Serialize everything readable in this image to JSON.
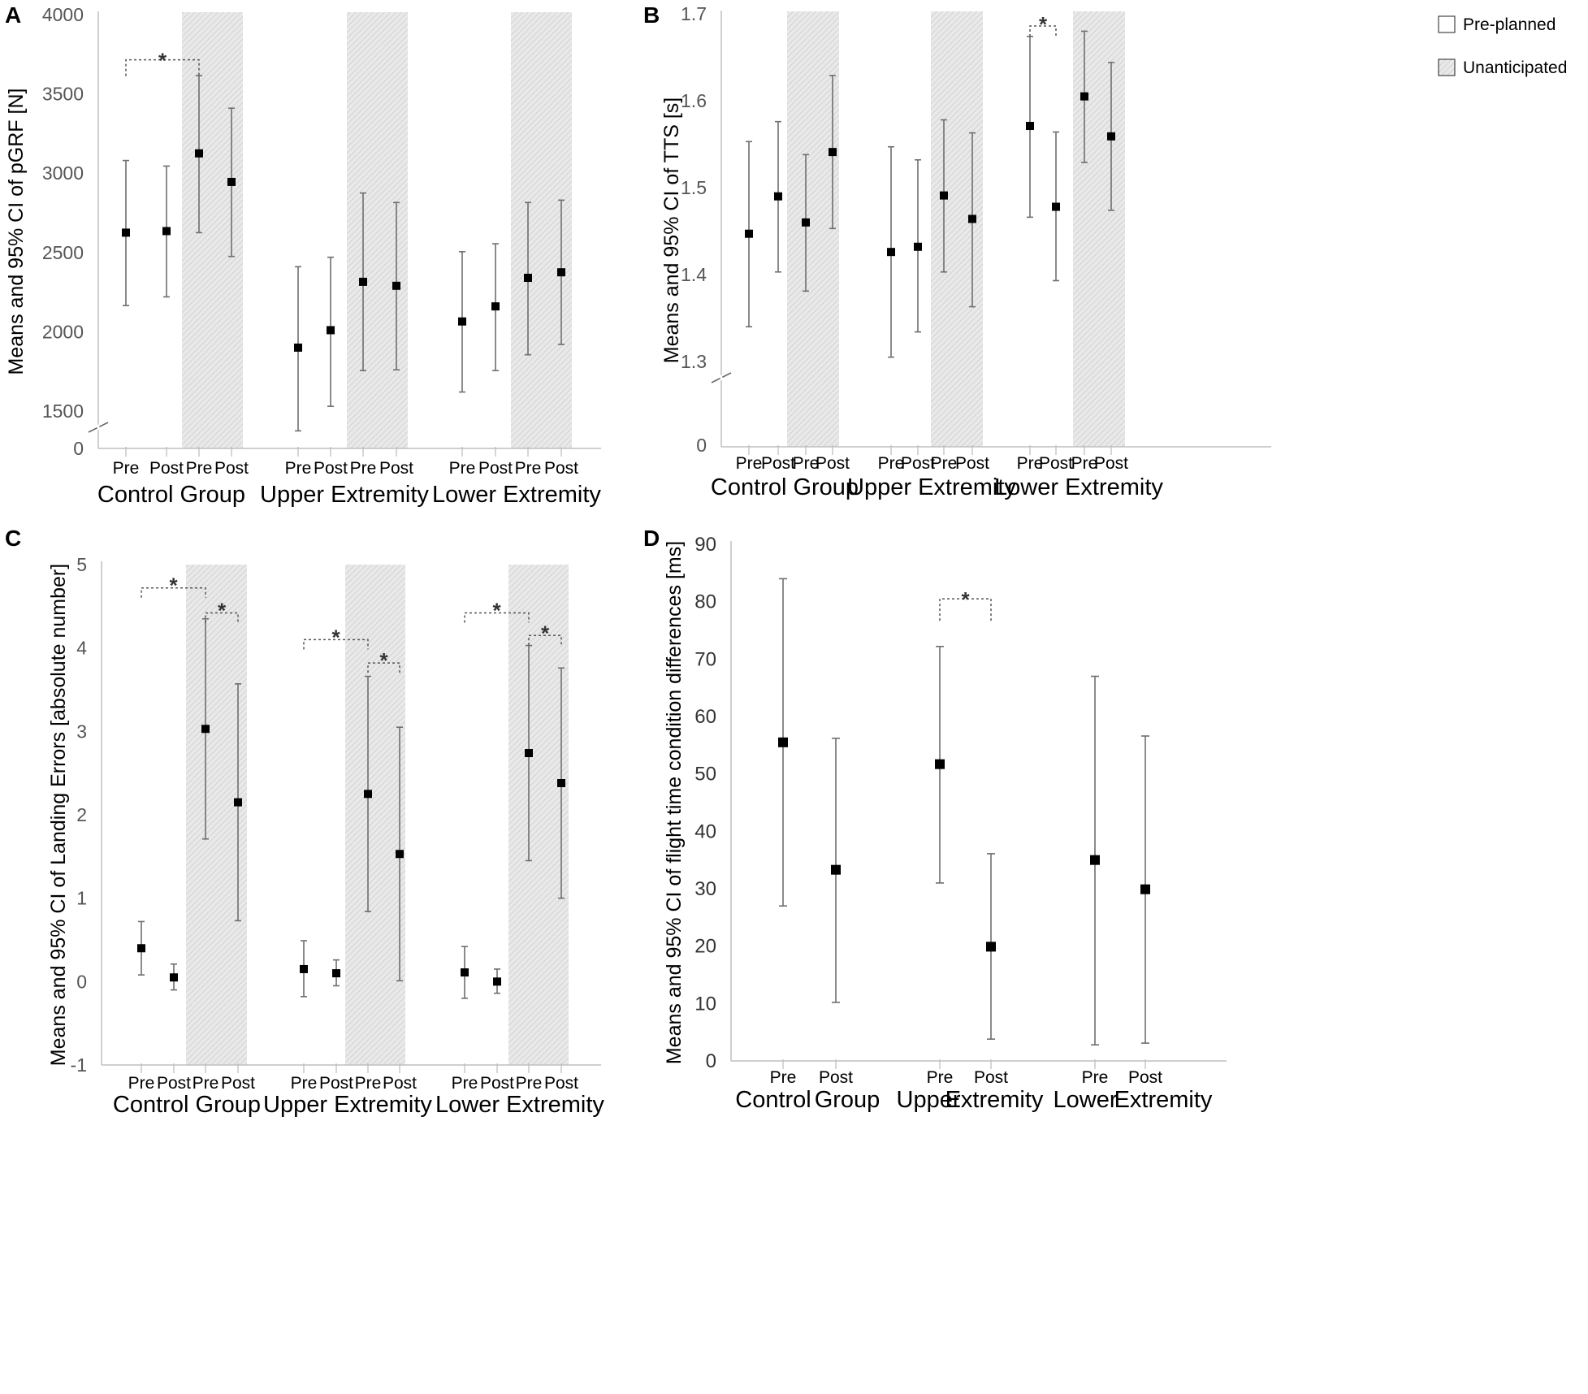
{
  "colors": {
    "axis": "#bfbfbf",
    "error_bar": "#6e6e6e",
    "marker": "#000000",
    "shade": "#d6d6d6",
    "bracket": "#555555",
    "text": "#000000"
  },
  "chart_data": [
    {
      "panel": "A",
      "type": "scatter",
      "title": "",
      "xlabel": "",
      "ylabel": "Means and 95% CI of pGRF [N]",
      "yticks": [
        "0",
        "1500",
        "2000",
        "2500",
        "3000",
        "3500",
        "4000"
      ],
      "ylim": [
        1500,
        4000
      ],
      "axis_break": true,
      "groups": [
        "Control Group",
        "Upper Extremity",
        "Lower Extremity"
      ],
      "conditions": [
        "Pre",
        "Post",
        "Pre",
        "Post"
      ],
      "points": [
        {
          "group": "Control Group",
          "condition": "Pre",
          "type": "Pre-planned",
          "mean": 2625,
          "lower": 2165,
          "upper": 3080
        },
        {
          "group": "Control Group",
          "condition": "Post",
          "type": "Pre-planned",
          "mean": 2635,
          "lower": 2220,
          "upper": 3045
        },
        {
          "group": "Control Group",
          "condition": "Pre",
          "type": "Unanticipated",
          "mean": 3125,
          "lower": 2625,
          "upper": 3615
        },
        {
          "group": "Control Group",
          "condition": "Post",
          "type": "Unanticipated",
          "mean": 2945,
          "lower": 2475,
          "upper": 3410
        },
        {
          "group": "Upper Extremity",
          "condition": "Pre",
          "type": "Pre-planned",
          "mean": 1900,
          "lower": 1375,
          "upper": 2410
        },
        {
          "group": "Upper Extremity",
          "condition": "Post",
          "type": "Pre-planned",
          "mean": 2010,
          "lower": 1530,
          "upper": 2470
        },
        {
          "group": "Upper Extremity",
          "condition": "Pre",
          "type": "Unanticipated",
          "mean": 2315,
          "lower": 1755,
          "upper": 2875
        },
        {
          "group": "Upper Extremity",
          "condition": "Post",
          "type": "Unanticipated",
          "mean": 2290,
          "lower": 1760,
          "upper": 2815
        },
        {
          "group": "Lower Extremity",
          "condition": "Pre",
          "type": "Pre-planned",
          "mean": 2065,
          "lower": 1620,
          "upper": 2505
        },
        {
          "group": "Lower Extremity",
          "condition": "Post",
          "type": "Pre-planned",
          "mean": 2160,
          "lower": 1755,
          "upper": 2555
        },
        {
          "group": "Lower Extremity",
          "condition": "Pre",
          "type": "Unanticipated",
          "mean": 2340,
          "lower": 1855,
          "upper": 2815
        },
        {
          "group": "Lower Extremity",
          "condition": "Post",
          "type": "Unanticipated",
          "mean": 2375,
          "lower": 1920,
          "upper": 2830
        }
      ],
      "significance": [
        {
          "from": 0,
          "to": 2,
          "label": "*",
          "level": 3715
        }
      ]
    },
    {
      "panel": "B",
      "type": "scatter",
      "title": "",
      "xlabel": "",
      "ylabel": "Means and 95% CI of TTS [s]",
      "yticks": [
        "0",
        "1.3",
        "1.4",
        "1.5",
        "1.6",
        "1.7"
      ],
      "ylim": [
        1.3,
        1.7
      ],
      "axis_break": true,
      "groups": [
        "Control Group",
        "Upper Extremity",
        "Lower Extremity"
      ],
      "conditions": [
        "Pre",
        "Post",
        "Pre",
        "Post"
      ],
      "points": [
        {
          "group": "Control Group",
          "condition": "Pre",
          "type": "Pre-planned",
          "mean": 1.447,
          "lower": 1.34,
          "upper": 1.553
        },
        {
          "group": "Control Group",
          "condition": "Post",
          "type": "Pre-planned",
          "mean": 1.49,
          "lower": 1.403,
          "upper": 1.576
        },
        {
          "group": "Control Group",
          "condition": "Pre",
          "type": "Unanticipated",
          "mean": 1.46,
          "lower": 1.381,
          "upper": 1.538
        },
        {
          "group": "Control Group",
          "condition": "Post",
          "type": "Unanticipated",
          "mean": 1.541,
          "lower": 1.453,
          "upper": 1.629
        },
        {
          "group": "Upper Extremity",
          "condition": "Pre",
          "type": "Pre-planned",
          "mean": 1.426,
          "lower": 1.305,
          "upper": 1.547
        },
        {
          "group": "Upper Extremity",
          "condition": "Post",
          "type": "Pre-planned",
          "mean": 1.432,
          "lower": 1.334,
          "upper": 1.532
        },
        {
          "group": "Upper Extremity",
          "condition": "Pre",
          "type": "Unanticipated",
          "mean": 1.491,
          "lower": 1.403,
          "upper": 1.578
        },
        {
          "group": "Upper Extremity",
          "condition": "Post",
          "type": "Unanticipated",
          "mean": 1.464,
          "lower": 1.363,
          "upper": 1.563
        },
        {
          "group": "Lower Extremity",
          "condition": "Pre",
          "type": "Pre-planned",
          "mean": 1.571,
          "lower": 1.466,
          "upper": 1.674
        },
        {
          "group": "Lower Extremity",
          "condition": "Post",
          "type": "Pre-planned",
          "mean": 1.478,
          "lower": 1.393,
          "upper": 1.564
        },
        {
          "group": "Lower Extremity",
          "condition": "Pre",
          "type": "Unanticipated",
          "mean": 1.605,
          "lower": 1.529,
          "upper": 1.68
        },
        {
          "group": "Lower Extremity",
          "condition": "Post",
          "type": "Unanticipated",
          "mean": 1.559,
          "lower": 1.474,
          "upper": 1.644
        }
      ],
      "significance": [
        {
          "from": 8,
          "to": 9,
          "label": "*",
          "level": 1.686
        }
      ],
      "legend": {
        "placement": "top-right",
        "entries": [
          "Pre-planned",
          "Unanticipated"
        ]
      }
    },
    {
      "panel": "C",
      "type": "scatter",
      "title": "",
      "xlabel": "",
      "ylabel": "Means and 95% CI of Landing Errors [absolute number]",
      "yticks": [
        "-1",
        "0",
        "1",
        "2",
        "3",
        "4",
        "5"
      ],
      "ylim": [
        -1,
        5
      ],
      "axis_break": false,
      "groups": [
        "Control Group",
        "Upper Extremity",
        "Lower Extremity"
      ],
      "conditions": [
        "Pre",
        "Post",
        "Pre",
        "Post"
      ],
      "points": [
        {
          "group": "Control Group",
          "condition": "Pre",
          "type": "Pre-planned",
          "mean": 0.4,
          "lower": 0.08,
          "upper": 0.72
        },
        {
          "group": "Control Group",
          "condition": "Post",
          "type": "Pre-planned",
          "mean": 0.05,
          "lower": -0.1,
          "upper": 0.21
        },
        {
          "group": "Control Group",
          "condition": "Pre",
          "type": "Unanticipated",
          "mean": 3.03,
          "lower": 1.71,
          "upper": 4.35
        },
        {
          "group": "Control Group",
          "condition": "Post",
          "type": "Unanticipated",
          "mean": 2.15,
          "lower": 0.73,
          "upper": 3.57
        },
        {
          "group": "Upper Extremity",
          "condition": "Pre",
          "type": "Pre-planned",
          "mean": 0.15,
          "lower": -0.18,
          "upper": 0.49
        },
        {
          "group": "Upper Extremity",
          "condition": "Post",
          "type": "Pre-planned",
          "mean": 0.1,
          "lower": -0.05,
          "upper": 0.26
        },
        {
          "group": "Upper Extremity",
          "condition": "Pre",
          "type": "Unanticipated",
          "mean": 2.25,
          "lower": 0.84,
          "upper": 3.66
        },
        {
          "group": "Upper Extremity",
          "condition": "Post",
          "type": "Unanticipated",
          "mean": 1.53,
          "lower": 0.01,
          "upper": 3.05
        },
        {
          "group": "Lower Extremity",
          "condition": "Pre",
          "type": "Pre-planned",
          "mean": 0.11,
          "lower": -0.2,
          "upper": 0.42
        },
        {
          "group": "Lower Extremity",
          "condition": "Post",
          "type": "Pre-planned",
          "mean": 0.0,
          "lower": -0.14,
          "upper": 0.15
        },
        {
          "group": "Lower Extremity",
          "condition": "Pre",
          "type": "Unanticipated",
          "mean": 2.74,
          "lower": 1.45,
          "upper": 4.03
        },
        {
          "group": "Lower Extremity",
          "condition": "Post",
          "type": "Unanticipated",
          "mean": 2.38,
          "lower": 1.0,
          "upper": 3.76
        }
      ],
      "significance": [
        {
          "from": 0,
          "to": 2,
          "label": "*",
          "level": 4.72
        },
        {
          "from": 2,
          "to": 3,
          "label": "*",
          "level": 4.42
        },
        {
          "from": 4,
          "to": 6,
          "label": "*",
          "level": 4.1
        },
        {
          "from": 6,
          "to": 7,
          "label": "*",
          "level": 3.82
        },
        {
          "from": 8,
          "to": 10,
          "label": "*",
          "level": 4.42
        },
        {
          "from": 10,
          "to": 11,
          "label": "*",
          "level": 4.15
        }
      ]
    },
    {
      "panel": "D",
      "type": "scatter",
      "title": "",
      "xlabel": "",
      "ylabel": "Means and 95% CI of flight time condition differences [ms]",
      "yticks": [
        "0",
        "10",
        "20",
        "30",
        "40",
        "50",
        "60",
        "70",
        "80",
        "90"
      ],
      "ylim": [
        0,
        90
      ],
      "axis_break": false,
      "group_labels": [
        {
          "left": "Control",
          "right": "Group"
        },
        {
          "left": "Upper",
          "right": "Extremity"
        },
        {
          "left": "Lower",
          "right": "Extremity"
        }
      ],
      "conditions": [
        "Pre",
        "Post"
      ],
      "points": [
        {
          "group": "Control Group",
          "condition": "Pre",
          "mean": 55.5,
          "lower": 27,
          "upper": 84
        },
        {
          "group": "Control Group",
          "condition": "Post",
          "mean": 33.3,
          "lower": 10.2,
          "upper": 56.2
        },
        {
          "group": "Upper Extremity",
          "condition": "Pre",
          "mean": 51.7,
          "lower": 31,
          "upper": 72.2
        },
        {
          "group": "Upper Extremity",
          "condition": "Post",
          "mean": 19.9,
          "lower": 3.8,
          "upper": 36.1
        },
        {
          "group": "Lower Extremity",
          "condition": "Pre",
          "mean": 35.0,
          "lower": 2.8,
          "upper": 67
        },
        {
          "group": "Lower Extremity",
          "condition": "Post",
          "mean": 29.9,
          "lower": 3.1,
          "upper": 56.6
        }
      ],
      "significance": [
        {
          "from": 2,
          "to": 3,
          "label": "*",
          "level": 80.5
        }
      ]
    }
  ]
}
